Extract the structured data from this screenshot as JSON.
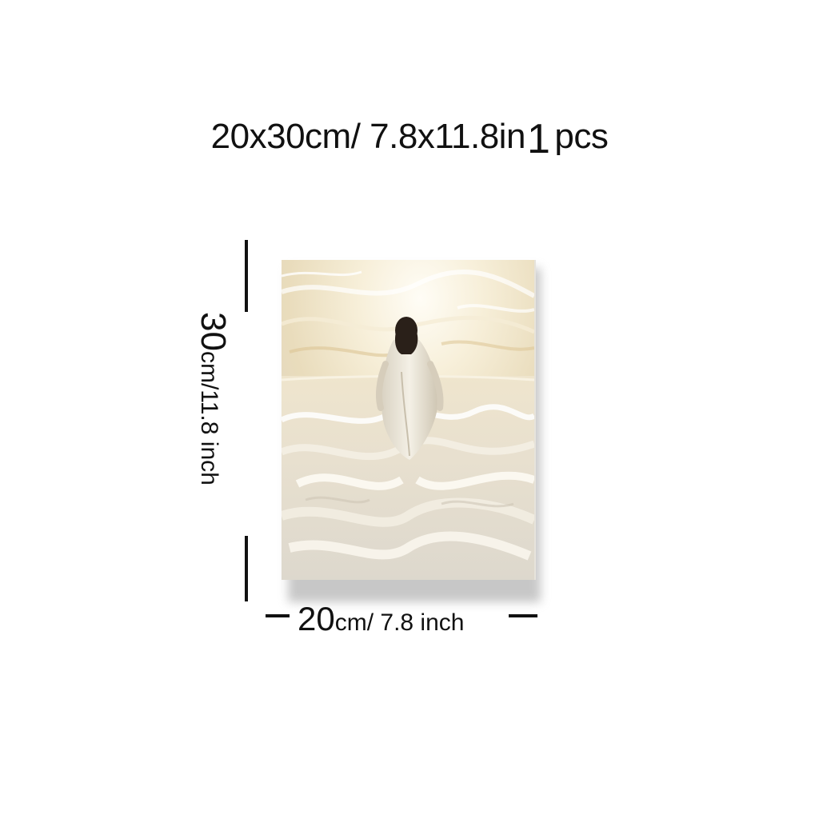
{
  "title": {
    "size_text": "20x30cm/ 7.8x11.8in",
    "qty_number": "1",
    "qty_unit": "pcs"
  },
  "height_label": {
    "number": "30",
    "unit_text": "cm/11.8 inch"
  },
  "width_label": {
    "number": "20",
    "unit_text": "cm/ 7.8 inch"
  },
  "colors": {
    "background": "#ffffff",
    "canvas_base": "#e9e4d8",
    "sky_glow": "#fff6df",
    "sand_accent": "#d9b97a",
    "robe": "#f1ede3",
    "hair": "#2a2019",
    "dimension_lines": "#111111"
  }
}
